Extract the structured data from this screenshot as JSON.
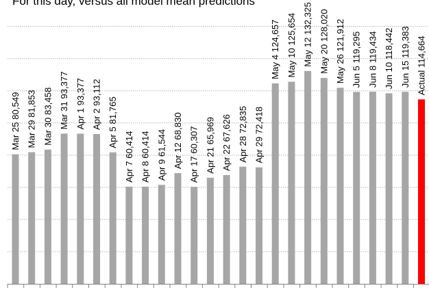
{
  "chart_data": {
    "type": "bar",
    "title": "For this day, versus all model mean predictions",
    "categories": [
      "Mar 25",
      "Mar 29",
      "Mar 30",
      "Mar 31",
      "Apr 1",
      "Apr 2",
      "Apr 5",
      "Apr 7",
      "Apr 8",
      "Apr 9",
      "Apr 12",
      "Apr 17",
      "Apr 21",
      "Apr 22",
      "Apr 28",
      "Apr 29",
      "May 4",
      "May 10",
      "May 12",
      "May 20",
      "May 26",
      "Jun 5",
      "Jun 8",
      "Jun 10",
      "Jun 15",
      "Actual"
    ],
    "values": [
      80549,
      81853,
      83458,
      93377,
      93377,
      93112,
      81765,
      60414,
      60414,
      61544,
      68830,
      60307,
      65969,
      67626,
      72835,
      72418,
      124657,
      125654,
      132325,
      128020,
      121912,
      119295,
      119434,
      118442,
      119383,
      114664
    ],
    "labels": [
      "Mar 25 80,549",
      "Mar 29 81,853",
      "Mar 30 83,458",
      "Mar 31 93,377",
      "Apr 1 93,377",
      "Apr 2 93,112",
      "Apr 5 81,765",
      "Apr 7 60,414",
      "Apr 8 60,414",
      "Apr 9 61,544",
      "Apr 12 68,830",
      "Apr 17 60,307",
      "Apr 21 65,969",
      "Apr 22 67,626",
      "Apr 28 72,835",
      "Apr 29 72,418",
      "May 4 124,657",
      "May 10 125,654",
      "May 12 132,325",
      "May 20 128,020",
      "May 26 121,912",
      "Jun 5 119,295",
      "Jun 8 119,434",
      "Jun 10 118,442",
      "Jun 15 119,383",
      "Actual  114,664"
    ],
    "ylim": [
      0,
      180000
    ],
    "gridlines": [
      20000,
      40000,
      60000,
      80000,
      100000,
      120000,
      140000,
      160000
    ],
    "grid": true,
    "legend": "none",
    "colors": {
      "bar": "#a6a6a6",
      "highlight": "#ff0000",
      "gridline": "#b3b3b3",
      "axis": "#808080"
    },
    "highlight_index": 25
  }
}
